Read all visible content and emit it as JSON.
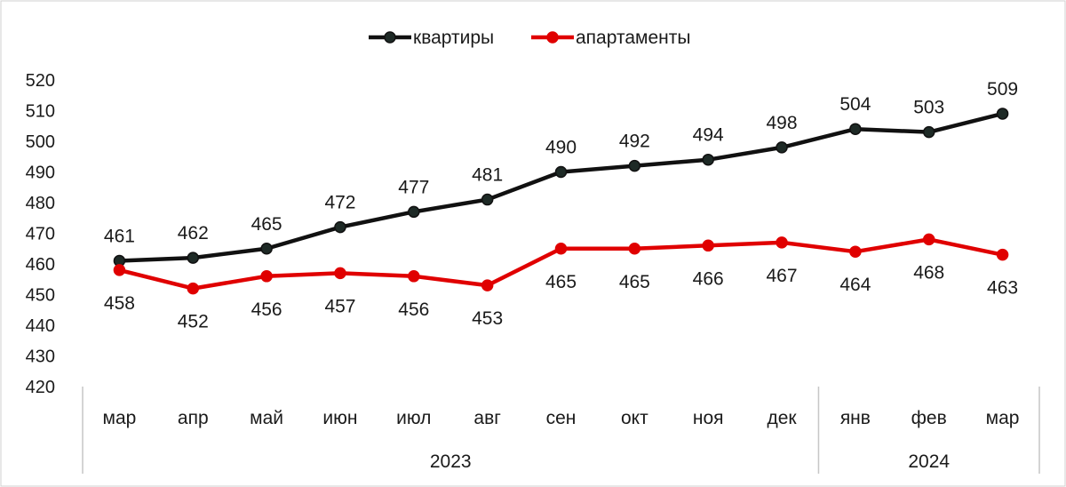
{
  "chart_data": {
    "type": "line",
    "categories": [
      "мар",
      "апр",
      "май",
      "июн",
      "июл",
      "авг",
      "сен",
      "окт",
      "ноя",
      "дек",
      "янв",
      "фев",
      "мар"
    ],
    "groups": [
      {
        "label": "2023",
        "span": 10
      },
      {
        "label": "2024",
        "span": 3
      }
    ],
    "series": [
      {
        "name": "квартиры",
        "color": "#111111",
        "marker_color": "#1e2a26",
        "values": [
          461,
          462,
          465,
          472,
          477,
          481,
          490,
          492,
          494,
          498,
          504,
          503,
          509
        ],
        "label_position": "above"
      },
      {
        "name": "апартаменты",
        "color": "#e00000",
        "marker_color": "#e00000",
        "values": [
          458,
          452,
          456,
          457,
          456,
          453,
          465,
          465,
          466,
          467,
          464,
          468,
          463
        ],
        "label_position": "below"
      }
    ],
    "ylim": [
      420,
      520
    ],
    "yticks": [
      420,
      430,
      440,
      450,
      460,
      470,
      480,
      490,
      500,
      510,
      520
    ],
    "title": "",
    "xlabel": "",
    "ylabel": "",
    "legend_position": "top-center",
    "grid": false
  }
}
